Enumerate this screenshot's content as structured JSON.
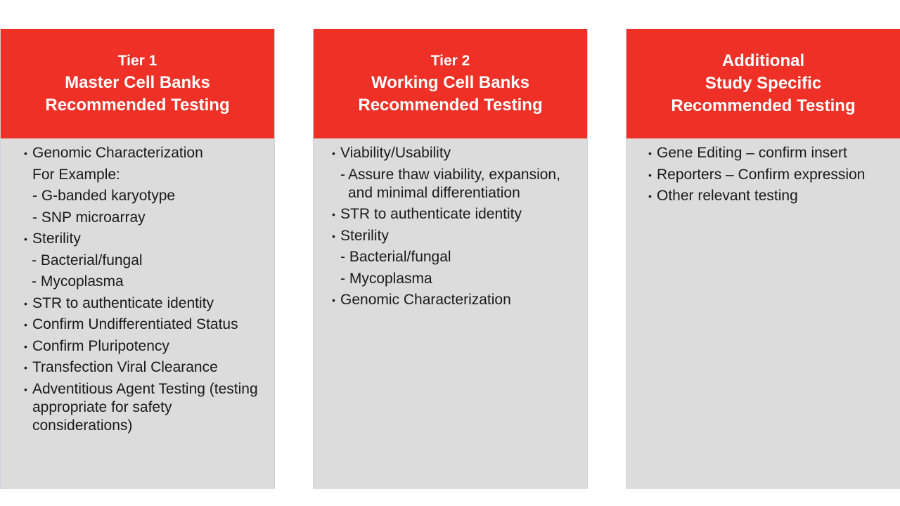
{
  "columns": [
    {
      "header": [
        "Tier 1",
        "Master Cell Banks",
        "Recommended Testing"
      ],
      "items": [
        {
          "type": "bullet",
          "text": "Genomic Characterization"
        },
        {
          "type": "plain",
          "text": "For Example:"
        },
        {
          "type": "plain",
          "text": "- G-banded karyotype"
        },
        {
          "type": "plain",
          "text": "- SNP microarray"
        },
        {
          "type": "bullet",
          "text": "Sterility"
        },
        {
          "type": "plain2",
          "text": "- Bacterial/fungal"
        },
        {
          "type": "plain2",
          "text": "- Mycoplasma"
        },
        {
          "type": "bullet",
          "text": "STR to authenticate identity"
        },
        {
          "type": "bullet",
          "text": "Confirm Undifferentiated Status"
        },
        {
          "type": "bullet",
          "text": "Confirm Pluripotency"
        },
        {
          "type": "bullet",
          "text": "Transfection Viral Clearance"
        },
        {
          "type": "bullet",
          "text": "Adventitious Agent Testing (testing appropriate for safety considerations)"
        }
      ]
    },
    {
      "header": [
        "Tier 2",
        "Working Cell Banks",
        "Recommended Testing"
      ],
      "items": [
        {
          "type": "bullet",
          "text": "Viability/Usability"
        },
        {
          "type": "dash",
          "text": "Assure thaw viability, expansion, and minimal differentiation"
        },
        {
          "type": "bullet",
          "text": "STR to authenticate identity"
        },
        {
          "type": "bullet",
          "text": "Sterility"
        },
        {
          "type": "plain",
          "text": "- Bacterial/fungal"
        },
        {
          "type": "plain",
          "text": "- Mycoplasma"
        },
        {
          "type": "bullet",
          "text": "Genomic Characterization"
        }
      ]
    },
    {
      "header": [
        "Additional",
        "Study Specific",
        "Recommended Testing"
      ],
      "items": [
        {
          "type": "bullet",
          "text": "Gene Editing – confirm insert"
        },
        {
          "type": "bullet",
          "text": "Reporters – Confirm expression"
        },
        {
          "type": "bullet",
          "text": "Other relevant testing"
        }
      ]
    }
  ],
  "colors": {
    "header_bg": "#ee3026",
    "panel_bg": "#dcdcdc",
    "header_text": "#ffffff",
    "body_text": "#1a1a1a"
  }
}
